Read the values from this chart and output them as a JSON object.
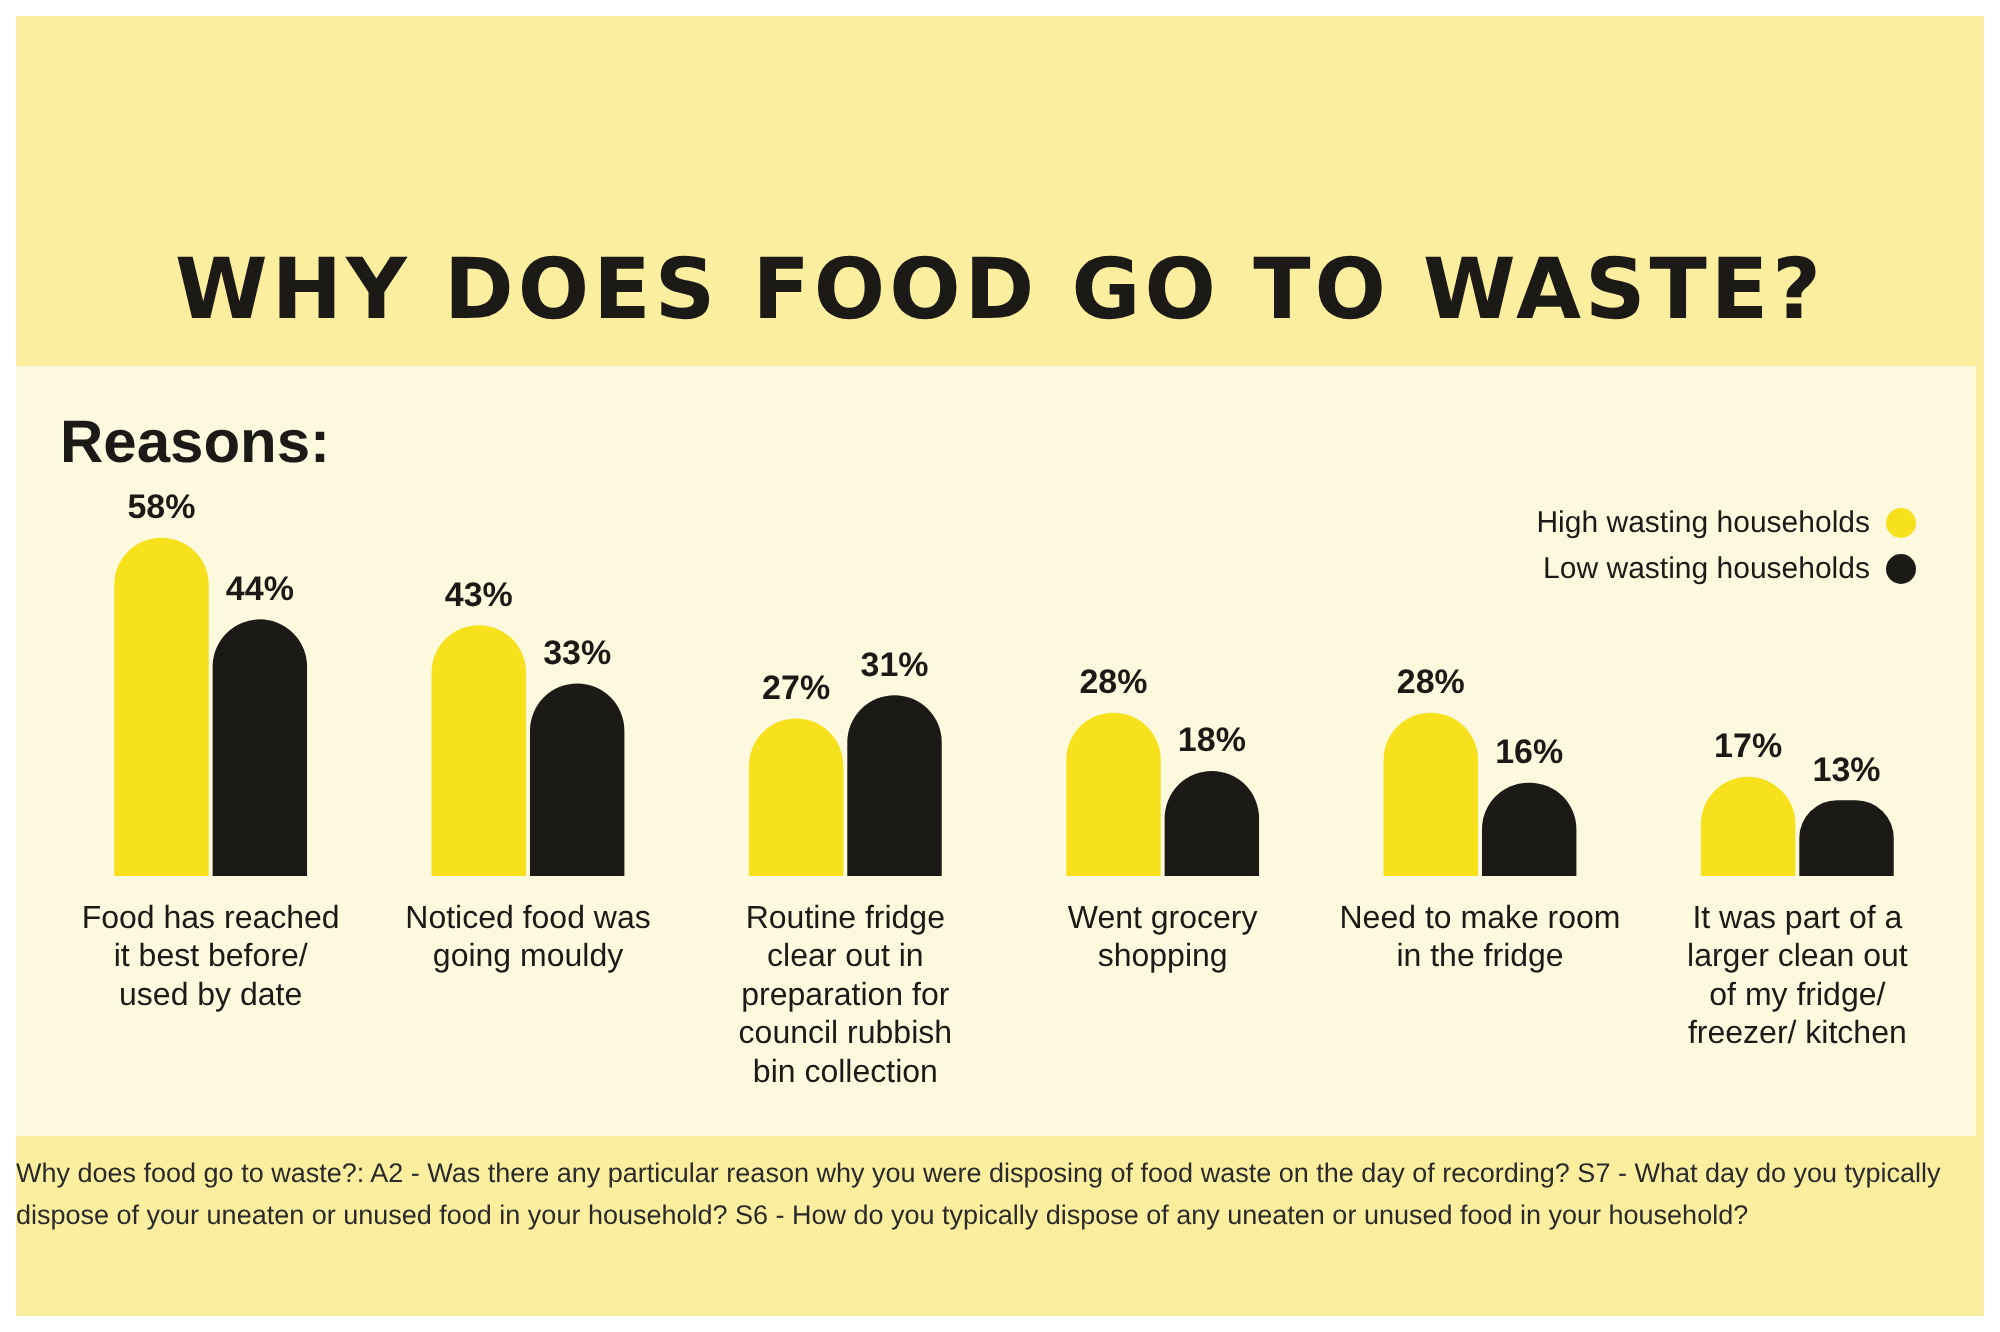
{
  "chart_data": {
    "type": "bar",
    "title": "WHY DOES FOOD GO TO WASTE?",
    "subtitle": "Reasons:",
    "categories": [
      "Food has reached it best before/ used by date",
      "Noticed food was going mouldy",
      "Routine fridge clear out in preparation for council rubbish bin collection",
      "Went grocery shopping",
      "Need to make room in the fridge",
      "It was part of a larger clean out of my fridge/ freezer/ kitchen"
    ],
    "series": [
      {
        "name": "High wasting households",
        "color": "#f7e01c",
        "values": [
          58,
          43,
          27,
          28,
          28,
          17
        ],
        "value_labels": [
          "58%",
          "43%",
          "27%",
          "28%",
          "28%",
          "17%"
        ]
      },
      {
        "name": "Low wasting households",
        "color": "#1c1a17",
        "values": [
          44,
          33,
          31,
          18,
          16,
          13
        ],
        "value_labels": [
          "44%",
          "33%",
          "31%",
          "18%",
          "16%",
          "13%"
        ]
      }
    ],
    "relative": false,
    "grid": false,
    "legend": "top right",
    "annotations": [
      "Why does food go to waste?: A2 - Was there any particular reason why you were disposing of food waste on the day of recording? S7 - What day do you typically dispose of your uneaten or unused food in your household? S6 - How do you typically dispose of any uneaten or unused food in your household?"
    ]
  }
}
